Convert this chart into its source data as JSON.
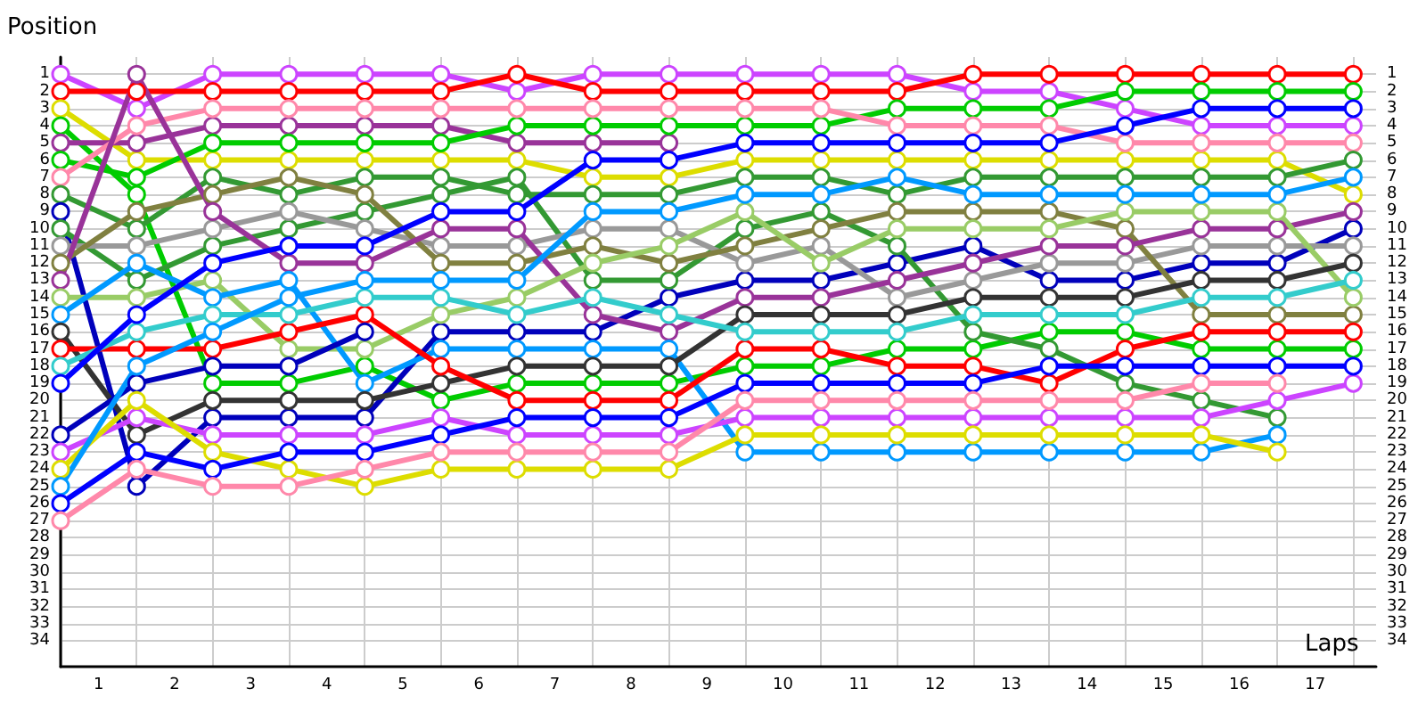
{
  "chart_data": {
    "type": "line",
    "xlabel": "Laps",
    "ylabel": "Position",
    "x": [
      0,
      1,
      2,
      3,
      4,
      5,
      6,
      7,
      8,
      9,
      10,
      11,
      12,
      13,
      14,
      15,
      16,
      17
    ],
    "xlim": [
      0,
      17.3
    ],
    "xticks": [
      {
        "value": 0,
        "label": null
      },
      {
        "value": 0.5,
        "label": "1"
      },
      {
        "value": 1,
        "label": null
      },
      {
        "value": 1.5,
        "label": "2"
      },
      {
        "value": 2,
        "label": null
      },
      {
        "value": 2.5,
        "label": "3"
      },
      {
        "value": 3,
        "label": null
      },
      {
        "value": 3.5,
        "label": "4"
      },
      {
        "value": 4,
        "label": null
      },
      {
        "value": 4.5,
        "label": "5"
      },
      {
        "value": 5,
        "label": null
      },
      {
        "value": 5.5,
        "label": "6"
      },
      {
        "value": 6,
        "label": null
      },
      {
        "value": 6.5,
        "label": "7"
      },
      {
        "value": 7,
        "label": null
      },
      {
        "value": 7.5,
        "label": "8"
      },
      {
        "value": 8,
        "label": null
      },
      {
        "value": 8.5,
        "label": "9"
      },
      {
        "value": 9,
        "label": null
      },
      {
        "value": 9.5,
        "label": "10"
      },
      {
        "value": 10,
        "label": null
      },
      {
        "value": 10.5,
        "label": "11"
      },
      {
        "value": 11,
        "label": null
      },
      {
        "value": 11.5,
        "label": "12"
      },
      {
        "value": 12,
        "label": null
      },
      {
        "value": 12.5,
        "label": "13"
      },
      {
        "value": 13,
        "label": null
      },
      {
        "value": 13.5,
        "label": "14"
      },
      {
        "value": 14,
        "label": null
      },
      {
        "value": 14.5,
        "label": "15"
      },
      {
        "value": 15,
        "label": null
      },
      {
        "value": 15.5,
        "label": "16"
      },
      {
        "value": 16,
        "label": null
      },
      {
        "value": 16.5,
        "label": "17"
      },
      {
        "value": 17,
        "label": null
      }
    ],
    "ylim": [
      35.5,
      0
    ],
    "yticks": [
      1,
      2,
      3,
      4,
      5,
      6,
      7,
      8,
      9,
      10,
      11,
      12,
      13,
      14,
      15,
      16,
      17,
      18,
      19,
      20,
      21,
      22,
      23,
      24,
      25,
      26,
      27,
      28,
      29,
      30,
      31,
      32,
      33,
      34
    ],
    "y2lim": [
      35.5,
      0
    ],
    "y2ticks": [
      1,
      2,
      3,
      4,
      5,
      6,
      7,
      8,
      9,
      10,
      11,
      12,
      13,
      14,
      15,
      16,
      17,
      18,
      19,
      20,
      21,
      22,
      23,
      24,
      25,
      26,
      27,
      28,
      29,
      30,
      31,
      32,
      33,
      34
    ],
    "grid": true,
    "marker": "circle",
    "line_style": "solid",
    "series": [
      {
        "color": "#cc44ff",
        "values": [
          1,
          3,
          1,
          1,
          1,
          1,
          2,
          1,
          1,
          1,
          1,
          1,
          2,
          2,
          3,
          4,
          4,
          4
        ]
      },
      {
        "color": "#ff0000",
        "values": [
          2,
          2,
          2,
          2,
          2,
          2,
          1,
          2,
          2,
          2,
          2,
          2,
          1,
          1,
          1,
          1,
          1,
          1
        ]
      },
      {
        "color": "#dddd00",
        "values": [
          3,
          6,
          6,
          6,
          6,
          6,
          6,
          7,
          7,
          6,
          6,
          6,
          6,
          6,
          6,
          6,
          6,
          8
        ]
      },
      {
        "color": "#00cc00",
        "values": [
          4,
          8,
          19,
          19,
          18,
          20,
          19,
          19,
          19,
          18,
          18,
          17,
          17,
          16,
          16,
          17,
          17,
          17
        ]
      },
      {
        "color": "#993399",
        "values": [
          5,
          5,
          4,
          4,
          4,
          4,
          5,
          5,
          5,
          null,
          null,
          null,
          null,
          null,
          null,
          null,
          null,
          null
        ]
      },
      {
        "color": "#00cc00",
        "values": [
          6,
          7,
          5,
          5,
          5,
          5,
          4,
          4,
          4,
          4,
          4,
          3,
          3,
          3,
          2,
          2,
          2,
          2
        ]
      },
      {
        "color": "#ff88aa",
        "values": [
          7,
          4,
          3,
          3,
          3,
          3,
          3,
          3,
          3,
          3,
          3,
          4,
          4,
          4,
          5,
          5,
          5,
          5
        ]
      },
      {
        "color": "#339933",
        "values": [
          8,
          10,
          7,
          8,
          7,
          7,
          8,
          8,
          8,
          7,
          7,
          8,
          7,
          7,
          7,
          7,
          7,
          6
        ]
      },
      {
        "color": "#0000bb",
        "values": [
          9,
          25,
          21,
          21,
          21,
          16,
          16,
          16,
          14,
          13,
          13,
          12,
          11,
          13,
          13,
          12,
          12,
          10
        ]
      },
      {
        "color": "#339933",
        "values": [
          10,
          13,
          11,
          10,
          9,
          8,
          7,
          13,
          13,
          10,
          9,
          11,
          16,
          17,
          19,
          20,
          21,
          null
        ]
      },
      {
        "color": "#999999",
        "values": [
          11,
          11,
          10,
          9,
          10,
          11,
          11,
          10,
          10,
          12,
          11,
          14,
          13,
          12,
          12,
          11,
          11,
          11
        ]
      },
      {
        "color": "#808040",
        "values": [
          12,
          9,
          8,
          7,
          8,
          12,
          12,
          11,
          12,
          11,
          10,
          9,
          9,
          9,
          10,
          15,
          15,
          15
        ]
      },
      {
        "color": "#993399",
        "values": [
          13,
          1,
          9,
          12,
          12,
          10,
          10,
          15,
          16,
          14,
          14,
          13,
          12,
          11,
          11,
          10,
          10,
          9
        ]
      },
      {
        "color": "#99cc66",
        "values": [
          14,
          14,
          13,
          17,
          17,
          15,
          14,
          12,
          11,
          9,
          12,
          10,
          10,
          10,
          9,
          9,
          9,
          14
        ]
      },
      {
        "color": "#0099ff",
        "values": [
          15,
          12,
          14,
          13,
          19,
          17,
          17,
          17,
          17,
          23,
          23,
          23,
          23,
          23,
          23,
          23,
          22,
          null
        ]
      },
      {
        "color": "#333333",
        "values": [
          16,
          22,
          20,
          20,
          20,
          19,
          18,
          18,
          18,
          15,
          15,
          15,
          14,
          14,
          14,
          13,
          13,
          12
        ]
      },
      {
        "color": "#ff0000",
        "values": [
          17,
          17,
          17,
          16,
          15,
          18,
          20,
          20,
          20,
          17,
          17,
          18,
          18,
          19,
          17,
          16,
          16,
          16
        ]
      },
      {
        "color": "#33cccc",
        "values": [
          18,
          16,
          15,
          15,
          14,
          14,
          15,
          14,
          15,
          16,
          16,
          16,
          15,
          15,
          15,
          14,
          14,
          13
        ]
      },
      {
        "color": "#0000ff",
        "values": [
          19,
          15,
          12,
          11,
          11,
          9,
          9,
          6,
          6,
          5,
          5,
          5,
          5,
          5,
          4,
          3,
          3,
          3
        ]
      },
      {
        "color": "#0000bb",
        "values": [
          22,
          19,
          18,
          18,
          16,
          null,
          null,
          null,
          null,
          null,
          null,
          null,
          null,
          null,
          null,
          null,
          null,
          null
        ]
      },
      {
        "color": "#cc44ff",
        "values": [
          23,
          21,
          22,
          22,
          22,
          21,
          22,
          22,
          22,
          21,
          21,
          21,
          21,
          21,
          21,
          21,
          20,
          19
        ]
      },
      {
        "color": "#dddd00",
        "values": [
          24,
          20,
          23,
          24,
          25,
          24,
          24,
          24,
          24,
          22,
          22,
          22,
          22,
          22,
          22,
          22,
          23,
          null
        ]
      },
      {
        "color": "#0099ff",
        "values": [
          25,
          18,
          16,
          14,
          13,
          13,
          13,
          9,
          9,
          8,
          8,
          7,
          8,
          8,
          8,
          8,
          8,
          7
        ]
      },
      {
        "color": "#0000ff",
        "values": [
          26,
          23,
          24,
          23,
          23,
          22,
          21,
          21,
          21,
          19,
          19,
          19,
          19,
          18,
          18,
          18,
          18,
          18
        ]
      },
      {
        "color": "#ff88aa",
        "values": [
          27,
          24,
          25,
          25,
          24,
          23,
          23,
          23,
          23,
          20,
          20,
          20,
          20,
          20,
          20,
          19,
          19,
          null
        ]
      }
    ]
  }
}
